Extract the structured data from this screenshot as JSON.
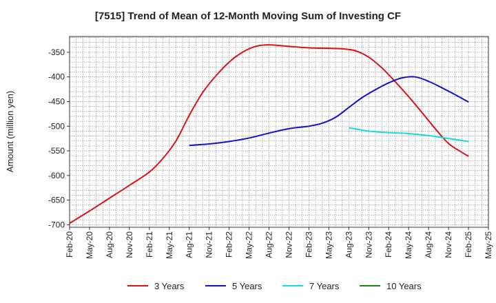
{
  "chart_data": {
    "type": "line",
    "title": "[7515]  Trend of Mean of 12-Month Moving Sum of Investing CF",
    "xlabel": "",
    "ylabel": "Amount (million yen)",
    "ylim": [
      -705,
      -318
    ],
    "yticks": [
      -350,
      -400,
      -450,
      -500,
      -550,
      -600,
      -650,
      -700
    ],
    "ytick_labels": [
      "-350",
      "-400",
      "-450",
      "-500",
      "-550",
      "-600",
      "-650",
      "-700"
    ],
    "xlim": [
      "2020-02",
      "2025-05"
    ],
    "xtick_labels": [
      "Feb-20",
      "May-20",
      "Aug-20",
      "Nov-20",
      "Feb-21",
      "May-21",
      "Aug-21",
      "Nov-21",
      "Feb-22",
      "May-22",
      "Aug-22",
      "Nov-22",
      "Feb-23",
      "May-23",
      "Aug-23",
      "Nov-23",
      "Feb-24",
      "May-24",
      "Aug-24",
      "Nov-24",
      "Feb-25",
      "May-25"
    ],
    "grid": true,
    "legend": "bottom",
    "series": [
      {
        "name": "3 Years",
        "color": "#dd1111",
        "x": [
          "2020-02",
          "2020-05",
          "2020-08",
          "2020-11",
          "2021-02",
          "2021-04",
          "2021-06",
          "2021-08",
          "2021-10",
          "2021-12",
          "2022-02",
          "2022-04",
          "2022-06",
          "2022-08",
          "2022-11",
          "2023-02",
          "2023-05",
          "2023-07",
          "2023-09",
          "2023-11",
          "2024-01",
          "2024-03",
          "2024-05",
          "2024-07",
          "2024-09",
          "2024-11",
          "2025-01",
          "2025-02"
        ],
        "values": [
          -697,
          -672,
          -646,
          -620,
          -593,
          -566,
          -530,
          -478,
          -432,
          -398,
          -370,
          -350,
          -338,
          -335,
          -338,
          -341,
          -342,
          -343,
          -347,
          -360,
          -382,
          -410,
          -440,
          -472,
          -505,
          -535,
          -553,
          -561
        ]
      },
      {
        "name": "5 Years",
        "color": "#1111cc",
        "x": [
          "2021-08",
          "2021-11",
          "2022-02",
          "2022-05",
          "2022-08",
          "2022-11",
          "2023-02",
          "2023-04",
          "2023-06",
          "2023-08",
          "2023-10",
          "2023-12",
          "2024-02",
          "2024-04",
          "2024-06",
          "2024-08",
          "2024-10",
          "2024-12",
          "2025-02"
        ],
        "values": [
          -539,
          -536,
          -531,
          -524,
          -514,
          -505,
          -500,
          -494,
          -482,
          -462,
          -442,
          -426,
          -412,
          -402,
          -400,
          -409,
          -422,
          -436,
          -451
        ]
      },
      {
        "name": "7 Years",
        "color": "#11dddd",
        "x": [
          "2023-08",
          "2023-11",
          "2024-02",
          "2024-05",
          "2024-08",
          "2024-11",
          "2025-02"
        ],
        "values": [
          -503,
          -510,
          -513,
          -515,
          -519,
          -525,
          -531
        ]
      },
      {
        "name": "10 Years",
        "color": "#118811",
        "x": [],
        "values": []
      }
    ]
  }
}
